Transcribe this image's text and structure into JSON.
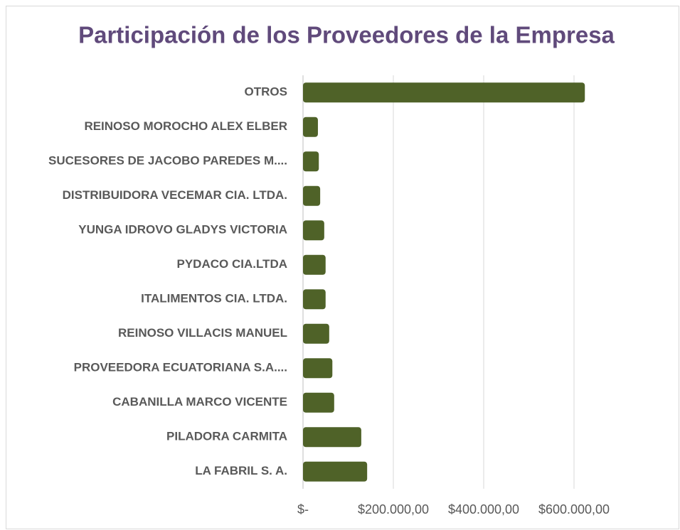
{
  "chart_data": {
    "type": "bar",
    "orientation": "horizontal",
    "title": "Participación de los Proveedores de la Empresa",
    "categories": [
      "OTROS",
      "REINOSO MOROCHO ALEX ELBER",
      "SUCESORES DE JACOBO PAREDES M....",
      "DISTRIBUIDORA VECEMAR CIA. LTDA.",
      "YUNGA IDROVO GLADYS VICTORIA",
      "PYDACO CIA.LTDA",
      "ITALIMENTOS CIA. LTDA.",
      "REINOSO VILLACIS MANUEL",
      "PROVEEDORA ECUATORIANA S.A....",
      "CABANILLA MARCO VICENTE",
      "PILADORA CARMITA",
      "LA FABRIL S. A."
    ],
    "values": [
      624000,
      33000,
      35000,
      38000,
      47000,
      50000,
      50000,
      58000,
      65000,
      69000,
      129000,
      142000
    ],
    "color": "#4f6228",
    "xlim": [
      0,
      700000
    ],
    "xticks": [
      {
        "value": 0,
        "label": "$-"
      },
      {
        "value": 200000,
        "label": "$200.000,00"
      },
      {
        "value": 400000,
        "label": "$400.000,00"
      },
      {
        "value": 600000,
        "label": "$600.000,00"
      }
    ],
    "grid": true
  }
}
